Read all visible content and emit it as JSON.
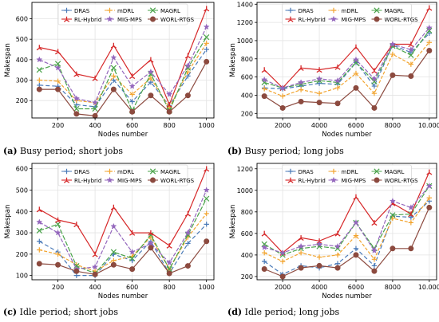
{
  "series_styles": [
    {
      "name": "DRAS",
      "color": "#4a7ab8",
      "dash": "5,3",
      "marker": "plus"
    },
    {
      "name": "mDRL",
      "color": "#f2a531",
      "dash": "4,2",
      "marker": "plus"
    },
    {
      "name": "MAGRL",
      "color": "#4aa34a",
      "dash": "6,2",
      "marker": "x"
    },
    {
      "name": "RL-Hybrid",
      "color": "#d62728",
      "dash": "",
      "marker": "tri"
    },
    {
      "name": "MIG-MPS",
      "color": "#9467bd",
      "dash": "5,2",
      "marker": "star"
    },
    {
      "name": "WORL-RTGS",
      "color": "#8c4a3f",
      "dash": "",
      "marker": "circle"
    }
  ],
  "chart_data": [
    {
      "id": "a",
      "type": "line",
      "caption_label": "(a)",
      "caption_text": "Busy period; short jobs",
      "xlabel": "Nodes number",
      "ylabel": "Makespan",
      "xlim": [
        60,
        1040
      ],
      "ylim": [
        115,
        680
      ],
      "xticks": [
        200,
        400,
        600,
        800,
        1000
      ],
      "xtick_labels": [
        "200",
        "400",
        "600",
        "800",
        "1000"
      ],
      "yticks": [
        200,
        300,
        400,
        500,
        600
      ],
      "grid": true,
      "legend": "top-center",
      "x": [
        100,
        200,
        300,
        400,
        500,
        600,
        700,
        800,
        900,
        1000
      ],
      "series": [
        {
          "name": "DRAS",
          "values": [
            275,
            270,
            180,
            170,
            300,
            195,
            290,
            175,
            320,
            450
          ]
        },
        {
          "name": "mDRL",
          "values": [
            300,
            295,
            200,
            190,
            320,
            230,
            310,
            165,
            340,
            480
          ]
        },
        {
          "name": "MAGRL",
          "values": [
            350,
            380,
            160,
            160,
            360,
            150,
            330,
            150,
            360,
            510
          ]
        },
        {
          "name": "RL-Hybrid",
          "values": [
            460,
            440,
            330,
            310,
            470,
            320,
            400,
            180,
            420,
            650
          ]
        },
        {
          "name": "MIG-MPS",
          "values": [
            400,
            360,
            210,
            190,
            410,
            270,
            340,
            230,
            370,
            560
          ]
        },
        {
          "name": "WORL-RTGS",
          "values": [
            255,
            255,
            135,
            125,
            255,
            145,
            225,
            145,
            225,
            390
          ]
        }
      ]
    },
    {
      "id": "b",
      "type": "line",
      "caption_label": "(b)",
      "caption_text": "Busy period; long jobs",
      "xlabel": "Nodes number",
      "ylabel": "Makespan",
      "xlim": [
        600,
        10400
      ],
      "ylim": [
        150,
        1420
      ],
      "xticks": [
        2000,
        4000,
        6000,
        8000,
        10000
      ],
      "xtick_labels": [
        "2000",
        "4000",
        "6000",
        "8000",
        "10.000"
      ],
      "yticks": [
        200,
        400,
        600,
        800,
        1000,
        1200,
        1400
      ],
      "grid": true,
      "legend": "top-center",
      "x": [
        1000,
        2000,
        3000,
        4000,
        5000,
        6000,
        7000,
        8000,
        9000,
        10000
      ],
      "series": [
        {
          "name": "DRAS",
          "values": [
            480,
            470,
            500,
            530,
            520,
            760,
            500,
            950,
            870,
            1080
          ]
        },
        {
          "name": "mDRL",
          "values": [
            470,
            390,
            460,
            420,
            480,
            640,
            420,
            850,
            740,
            980
          ]
        },
        {
          "name": "MAGRL",
          "values": [
            540,
            480,
            520,
            560,
            540,
            760,
            550,
            940,
            840,
            1110
          ]
        },
        {
          "name": "RL-Hybrid",
          "values": [
            680,
            480,
            700,
            680,
            710,
            930,
            670,
            960,
            960,
            1360
          ]
        },
        {
          "name": "MIG-MPS",
          "values": [
            570,
            480,
            540,
            580,
            560,
            790,
            580,
            960,
            900,
            1140
          ]
        },
        {
          "name": "WORL-RTGS",
          "values": [
            390,
            260,
            330,
            320,
            310,
            480,
            260,
            620,
            610,
            890
          ]
        }
      ]
    },
    {
      "id": "c",
      "type": "line",
      "caption_label": "(c)",
      "caption_text": "Idle period; short jobs",
      "xlabel": "Nodes number",
      "ylabel": "Makespan",
      "xlim": [
        60,
        1040
      ],
      "ylim": [
        80,
        625
      ],
      "xticks": [
        200,
        400,
        600,
        800,
        1000
      ],
      "xtick_labels": [
        "200",
        "400",
        "600",
        "800",
        "1000"
      ],
      "yticks": [
        100,
        200,
        300,
        400,
        500,
        600
      ],
      "grid": true,
      "legend": "top-center",
      "x": [
        100,
        200,
        300,
        400,
        500,
        600,
        700,
        800,
        900,
        1000
      ],
      "series": [
        {
          "name": "DRAS",
          "values": [
            260,
            210,
            100,
            100,
            200,
            170,
            260,
            110,
            250,
            340
          ]
        },
        {
          "name": "mDRL",
          "values": [
            220,
            200,
            150,
            120,
            170,
            190,
            280,
            130,
            280,
            390
          ]
        },
        {
          "name": "MAGRL",
          "values": [
            310,
            340,
            145,
            110,
            210,
            180,
            290,
            130,
            290,
            460
          ]
        },
        {
          "name": "RL-Hybrid",
          "values": [
            410,
            360,
            340,
            200,
            420,
            300,
            300,
            240,
            390,
            600
          ]
        },
        {
          "name": "MIG-MPS",
          "values": [
            350,
            300,
            130,
            140,
            330,
            210,
            250,
            160,
            300,
            500
          ]
        },
        {
          "name": "WORL-RTGS",
          "values": [
            155,
            150,
            120,
            105,
            150,
            130,
            230,
            110,
            145,
            260
          ]
        }
      ]
    },
    {
      "id": "d",
      "type": "line",
      "caption_label": "(d)",
      "caption_text": "Idle period; long jobs",
      "xlabel": "Nodes number",
      "ylabel": "Makespan",
      "xlim": [
        600,
        10400
      ],
      "ylim": [
        170,
        1250
      ],
      "xticks": [
        2000,
        4000,
        6000,
        8000,
        10000
      ],
      "xtick_labels": [
        "2000",
        "4000",
        "6000",
        "8000",
        "10.000"
      ],
      "yticks": [
        200,
        400,
        600,
        800,
        1000,
        1200
      ],
      "grid": true,
      "legend": "top-center",
      "x": [
        1000,
        2000,
        3000,
        4000,
        5000,
        6000,
        7000,
        8000,
        9000,
        10000
      ],
      "series": [
        {
          "name": "DRAS",
          "values": [
            340,
            220,
            300,
            280,
            320,
            460,
            300,
            760,
            750,
            900
          ]
        },
        {
          "name": "mDRL",
          "values": [
            420,
            340,
            420,
            380,
            400,
            580,
            360,
            740,
            700,
            930
          ]
        },
        {
          "name": "MAGRL",
          "values": [
            500,
            400,
            460,
            480,
            460,
            700,
            460,
            770,
            780,
            1040
          ]
        },
        {
          "name": "RL-Hybrid",
          "values": [
            600,
            420,
            560,
            530,
            600,
            940,
            700,
            880,
            780,
            1170
          ]
        },
        {
          "name": "MIG-MPS",
          "values": [
            470,
            420,
            480,
            500,
            480,
            700,
            440,
            900,
            840,
            1040
          ]
        },
        {
          "name": "WORL-RTGS",
          "values": [
            270,
            200,
            280,
            300,
            280,
            400,
            250,
            460,
            460,
            840
          ]
        }
      ]
    }
  ]
}
